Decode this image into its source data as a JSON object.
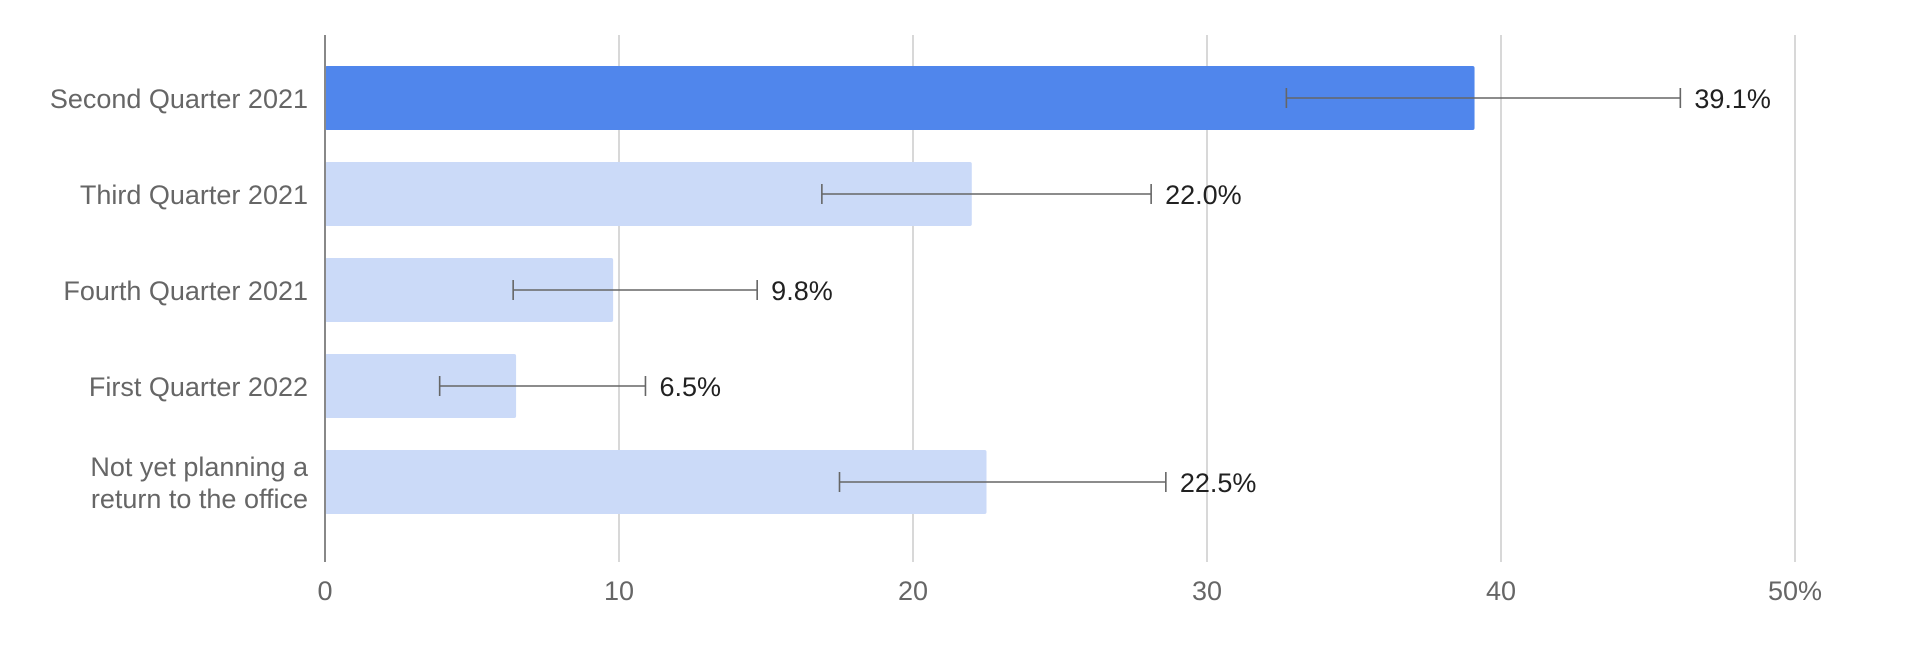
{
  "chart_data": {
    "type": "bar",
    "orientation": "horizontal",
    "title": "",
    "xlabel": "",
    "ylabel": "",
    "categories": [
      [
        "Second Quarter 2021"
      ],
      [
        "Third Quarter 2021"
      ],
      [
        "Fourth Quarter 2021"
      ],
      [
        "First Quarter 2022"
      ],
      [
        "Not yet planning a",
        "return to the office"
      ]
    ],
    "values": [
      39.1,
      22.0,
      9.8,
      6.5,
      22.5
    ],
    "value_labels": [
      "39.1%",
      "22.0%",
      "9.8%",
      "6.5%",
      "22.5%"
    ],
    "error_low": [
      32.7,
      16.9,
      6.4,
      3.9,
      17.5
    ],
    "error_high": [
      46.1,
      28.1,
      14.7,
      10.9,
      28.6
    ],
    "highlighted_index": 0,
    "xlim": [
      0,
      50
    ],
    "x_ticks": [
      0,
      10,
      20,
      30,
      40,
      50
    ],
    "x_tick_labels": [
      "0",
      "10",
      "20",
      "30",
      "40",
      "50%"
    ],
    "grid": true,
    "legend": "none",
    "colors": {
      "highlight": "#5086ec",
      "bar": "#cbdaf8",
      "error_bar": "#666666",
      "gridline": "#cccccc"
    }
  }
}
